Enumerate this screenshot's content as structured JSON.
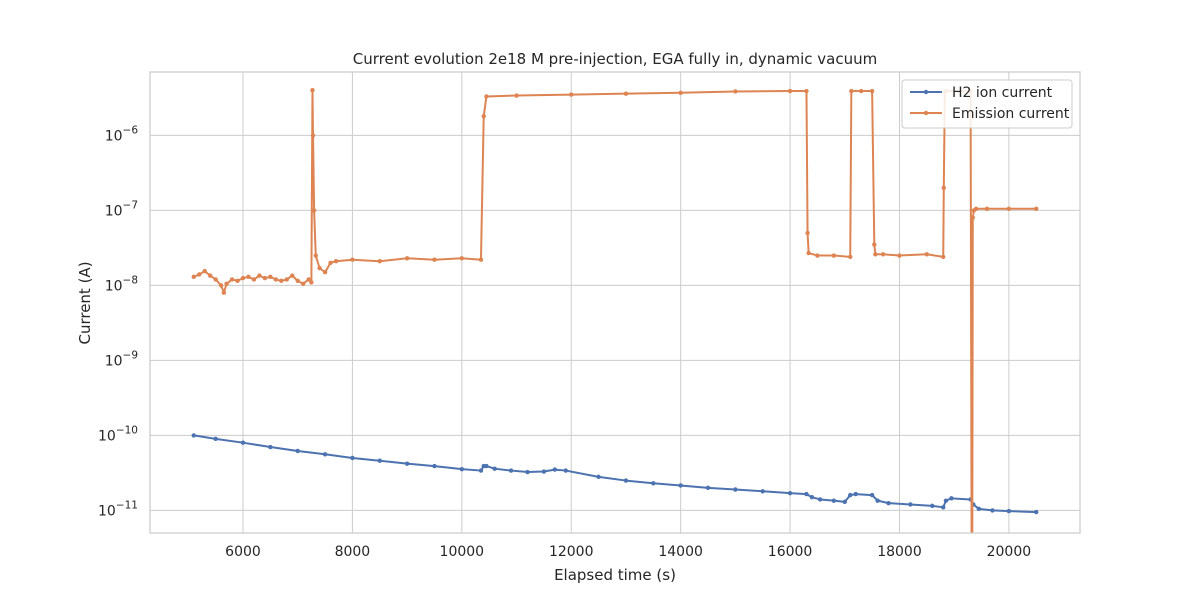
{
  "chart_data": {
    "type": "line",
    "title": "Current evolution 2e18 M pre-injection, EGA fully in, dynamic vacuum",
    "xlabel": "Elapsed time (s)",
    "ylabel": "Current (A)",
    "xlim": [
      4300,
      21300
    ],
    "ylim": [
      5e-12,
      7e-06
    ],
    "yscale": "log",
    "grid": true,
    "legend_position": "top-right",
    "x_ticks": [
      6000,
      8000,
      10000,
      12000,
      14000,
      16000,
      18000,
      20000
    ],
    "y_ticks": [
      {
        "value": 1e-11,
        "base": "10",
        "exp": "−11"
      },
      {
        "value": 1e-10,
        "base": "10",
        "exp": "−10"
      },
      {
        "value": 1e-09,
        "base": "10",
        "exp": "−9"
      },
      {
        "value": 1e-08,
        "base": "10",
        "exp": "−8"
      },
      {
        "value": 1e-07,
        "base": "10",
        "exp": "−7"
      },
      {
        "value": 1e-06,
        "base": "10",
        "exp": "−6"
      }
    ],
    "series": [
      {
        "name": "H2 ion current",
        "color": "#4c72b0",
        "x": [
          5100,
          5500,
          6000,
          6500,
          7000,
          7500,
          8000,
          8500,
          9000,
          9500,
          10000,
          10350,
          10400,
          10450,
          10600,
          10900,
          11200,
          11500,
          11700,
          11900,
          12500,
          13000,
          13500,
          14000,
          14500,
          15000,
          15500,
          16000,
          16300,
          16400,
          16550,
          16800,
          17000,
          17100,
          17200,
          17500,
          17600,
          17800,
          18200,
          18600,
          18800,
          18850,
          18950,
          19300,
          19350,
          19450,
          19700,
          20000,
          20500
        ],
        "y": [
          1e-10,
          9e-11,
          8e-11,
          7e-11,
          6.2e-11,
          5.6e-11,
          5e-11,
          4.6e-11,
          4.2e-11,
          3.9e-11,
          3.55e-11,
          3.4e-11,
          3.9e-11,
          3.9e-11,
          3.6e-11,
          3.4e-11,
          3.25e-11,
          3.3e-11,
          3.5e-11,
          3.4e-11,
          2.8e-11,
          2.5e-11,
          2.3e-11,
          2.15e-11,
          2e-11,
          1.9e-11,
          1.8e-11,
          1.7e-11,
          1.65e-11,
          1.5e-11,
          1.4e-11,
          1.35e-11,
          1.3e-11,
          1.6e-11,
          1.65e-11,
          1.6e-11,
          1.35e-11,
          1.25e-11,
          1.2e-11,
          1.15e-11,
          1.1e-11,
          1.35e-11,
          1.45e-11,
          1.4e-11,
          1.2e-11,
          1.05e-11,
          1e-11,
          9.8e-12,
          9.5e-12
        ]
      },
      {
        "name": "Emission current",
        "color": "#dd8452",
        "x": [
          5100,
          5200,
          5300,
          5400,
          5500,
          5600,
          5650,
          5700,
          5800,
          5900,
          6000,
          6100,
          6200,
          6300,
          6400,
          6500,
          6600,
          6700,
          6800,
          6900,
          7000,
          7100,
          7200,
          7250,
          7270,
          7280,
          7300,
          7330,
          7400,
          7500,
          7600,
          7700,
          8000,
          8500,
          9000,
          9500,
          10000,
          10350,
          10400,
          10450,
          11000,
          12000,
          13000,
          14000,
          15000,
          16000,
          16300,
          16320,
          16340,
          16500,
          16800,
          17100,
          17120,
          17300,
          17500,
          17540,
          17560,
          17700,
          18000,
          18500,
          18800,
          18810,
          18830,
          18860,
          19300,
          19320,
          19330,
          19340,
          19360,
          19400,
          19600,
          20000,
          20500
        ],
        "y": [
          1.3e-08,
          1.4e-08,
          1.55e-08,
          1.35e-08,
          1.2e-08,
          1e-08,
          8e-09,
          1.05e-08,
          1.2e-08,
          1.15e-08,
          1.25e-08,
          1.3e-08,
          1.2e-08,
          1.35e-08,
          1.25e-08,
          1.3e-08,
          1.2e-08,
          1.15e-08,
          1.2e-08,
          1.35e-08,
          1.15e-08,
          1.05e-08,
          1.2e-08,
          1.1e-08,
          4e-06,
          1e-06,
          1e-07,
          2.5e-08,
          1.7e-08,
          1.5e-08,
          2e-08,
          2.1e-08,
          2.2e-08,
          2.1e-08,
          2.3e-08,
          2.2e-08,
          2.3e-08,
          2.2e-08,
          1.8e-06,
          3.3e-06,
          3.4e-06,
          3.5e-06,
          3.6e-06,
          3.7e-06,
          3.85e-06,
          3.9e-06,
          3.9e-06,
          5e-08,
          2.7e-08,
          2.5e-08,
          2.5e-08,
          2.4e-08,
          3.9e-06,
          3.9e-06,
          3.9e-06,
          3.5e-08,
          2.6e-08,
          2.6e-08,
          2.5e-08,
          2.6e-08,
          2.4e-08,
          2e-07,
          3.9e-06,
          3.9e-06,
          3.9e-06,
          1e-12,
          1e-12,
          8e-08,
          1e-07,
          1.05e-07,
          1.05e-07,
          1.05e-07,
          1.05e-07
        ]
      }
    ]
  }
}
